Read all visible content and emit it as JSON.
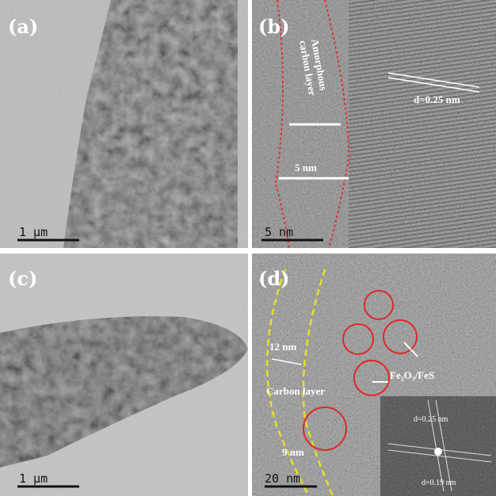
{
  "panels": [
    {
      "label": "(a)",
      "scale_bar": "1 μm"
    },
    {
      "label": "(b)",
      "scale_bar": "5 nm",
      "annotations": [
        "Amorphous",
        "carbon layer",
        "5 nm",
        "d=0.25 nm"
      ]
    },
    {
      "label": "(c)",
      "scale_bar": "1 μm"
    },
    {
      "label": "(d)",
      "scale_bar": "20 nm",
      "annotations": [
        "12 nm",
        "Carbon layer",
        "9 nm",
        "Fe₂O₃/FeS",
        "d=0.25 nm",
        "d=0.19 nm"
      ]
    }
  ]
}
